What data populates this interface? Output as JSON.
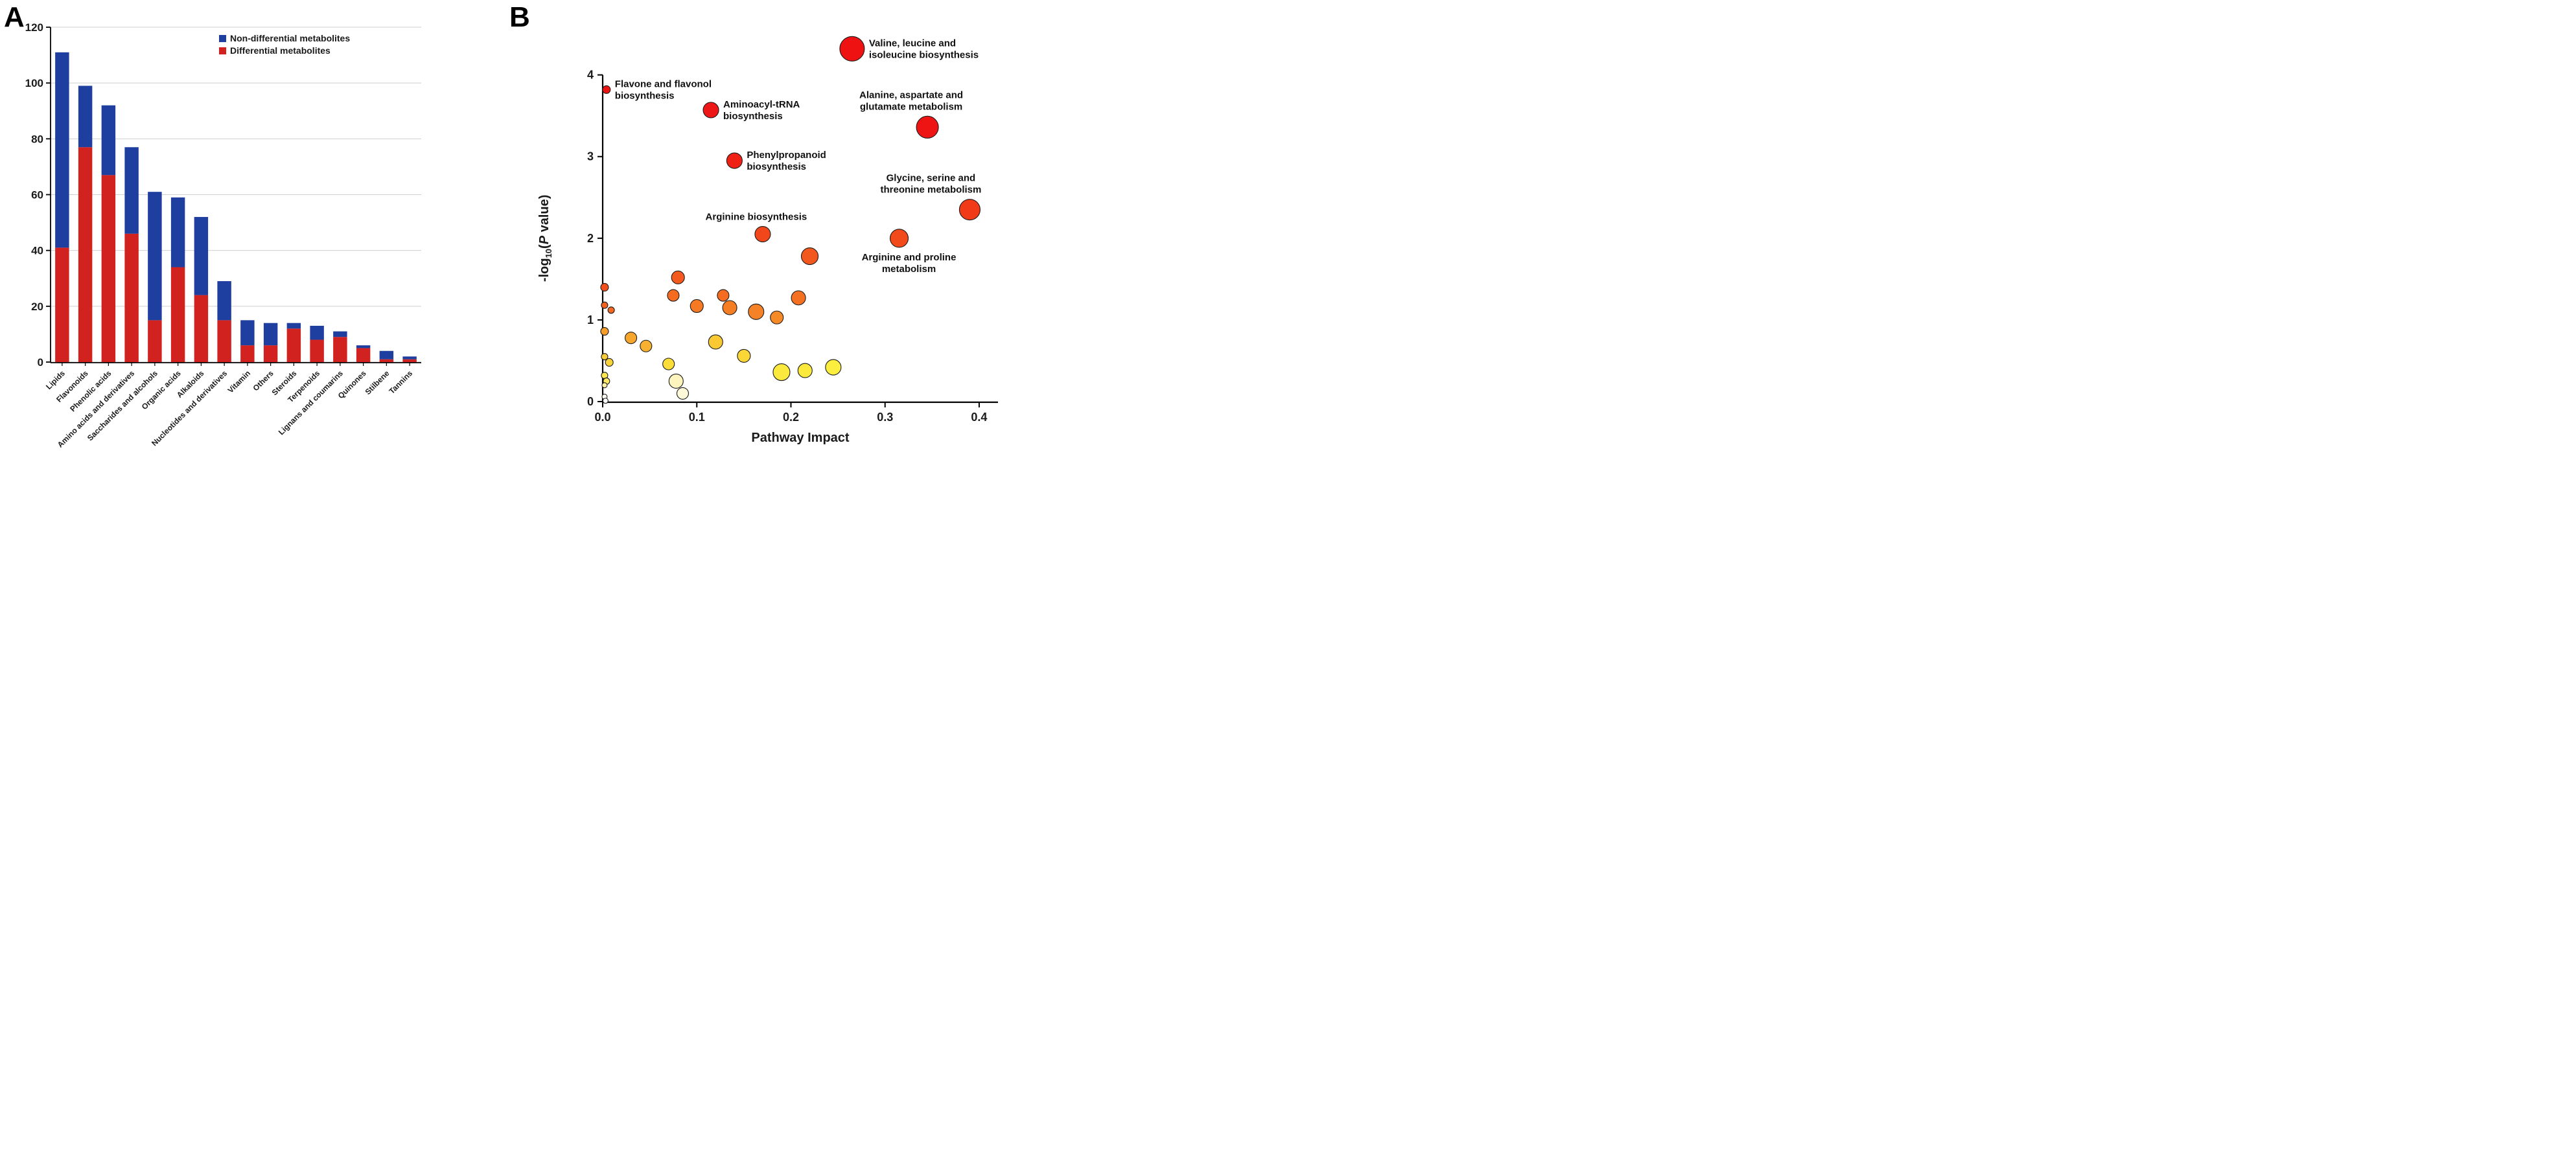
{
  "panels": {
    "a_label": "A",
    "b_label": "B"
  },
  "chart_data": [
    {
      "type": "bar",
      "stacked": true,
      "title": "",
      "categories": [
        "Lipids",
        "Flavonoids",
        "Phenolic acids",
        "Amino acids and derivatives",
        "Saccharides and alcohols",
        "Organic acids",
        "Alkaloids",
        "Nucleotides and derivatives",
        "Vitamin",
        "Others",
        "Steroids",
        "Terpenoids",
        "Lignans and coumarins",
        "Quinones",
        "Stilbene",
        "Tannins"
      ],
      "series": [
        {
          "name": "Differential metabolites",
          "color": "#d1221f",
          "values": [
            41,
            77,
            67,
            46,
            15,
            34,
            24,
            15,
            6,
            6,
            12,
            8,
            9,
            5,
            1,
            1
          ]
        },
        {
          "name": "Non-differential metabolites",
          "color": "#1e3ea0",
          "values": [
            70,
            22,
            25,
            31,
            46,
            25,
            28,
            14,
            9,
            8,
            2,
            5,
            2,
            1,
            3,
            1
          ]
        }
      ],
      "totals": [
        111,
        99,
        92,
        77,
        61,
        59,
        52,
        29,
        15,
        14,
        14,
        13,
        11,
        6,
        4,
        2
      ],
      "legend": {
        "position": "top-right",
        "items": [
          {
            "label": "Non-differential metabolites",
            "color": "#1e3ea0"
          },
          {
            "label": "Differential metabolites",
            "color": "#d1221f"
          }
        ]
      },
      "xlabel": "",
      "ylabel": "",
      "ylim": [
        0,
        120
      ],
      "yticks": [
        0,
        20,
        40,
        60,
        80,
        100,
        120
      ],
      "grid": true
    },
    {
      "type": "scatter",
      "title": "",
      "xlabel": "Pathway Impact",
      "ylabel": "-log10(P value)",
      "ylabel_parts": {
        "prefix": "-log",
        "sub": "10",
        "open": "(",
        "italic": "P",
        "suffix": " value)"
      },
      "xlim": [
        0,
        0.42
      ],
      "ylim": [
        0,
        4.6
      ],
      "xticks": [
        0.0,
        0.1,
        0.2,
        0.3,
        0.4
      ],
      "yticks": [
        0,
        1,
        2,
        3,
        4
      ],
      "grid": false,
      "points": [
        {
          "x": 0.004,
          "y": 3.82,
          "r": 6,
          "color": "#ec1313",
          "label": [
            "Flavone and flavonol",
            "biosynthesis"
          ],
          "anchor": "right"
        },
        {
          "x": 0.115,
          "y": 3.57,
          "r": 12,
          "color": "#ed1717",
          "label": [
            "Aminoacyl-tRNA",
            "biosynthesis"
          ],
          "anchor": "right"
        },
        {
          "x": 0.265,
          "y": 4.32,
          "r": 19,
          "color": "#ee1212",
          "label": [
            "Valine, leucine and",
            "isoleucine biosynthesis"
          ],
          "anchor": "right"
        },
        {
          "x": 0.345,
          "y": 3.36,
          "r": 17,
          "color": "#ee1414",
          "label": [
            "Alanine, aspartate and",
            "glutamate metabolism"
          ],
          "anchor": "above",
          "dx": -25
        },
        {
          "x": 0.14,
          "y": 2.95,
          "r": 12,
          "color": "#ef2114",
          "label": [
            "Phenylpropanoid",
            "biosynthesis"
          ],
          "anchor": "right"
        },
        {
          "x": 0.39,
          "y": 2.35,
          "r": 16,
          "color": "#f13a17",
          "label": [
            "Glycine, serine and",
            "threonine metabolism"
          ],
          "anchor": "above",
          "dx": -60
        },
        {
          "x": 0.17,
          "y": 2.05,
          "r": 12,
          "color": "#f2471a",
          "label": [
            "Arginine biosynthesis"
          ],
          "anchor": "above",
          "dx": -10
        },
        {
          "x": 0.315,
          "y": 2.0,
          "r": 14,
          "color": "#f24a1b",
          "label": [
            "Arginine and proline",
            "metabolism"
          ],
          "anchor": "below",
          "dx": 15
        },
        {
          "x": 0.22,
          "y": 1.78,
          "r": 13,
          "color": "#f2571e"
        },
        {
          "x": 0.002,
          "y": 1.4,
          "r": 6,
          "color": "#f24e1b"
        },
        {
          "x": 0.002,
          "y": 1.18,
          "r": 5,
          "color": "#f4611f"
        },
        {
          "x": 0.009,
          "y": 1.12,
          "r": 5,
          "color": "#f46821"
        },
        {
          "x": 0.08,
          "y": 1.52,
          "r": 10,
          "color": "#f45a1d"
        },
        {
          "x": 0.075,
          "y": 1.3,
          "r": 9,
          "color": "#f56b20"
        },
        {
          "x": 0.1,
          "y": 1.17,
          "r": 10,
          "color": "#f57a23"
        },
        {
          "x": 0.128,
          "y": 1.3,
          "r": 9,
          "color": "#f56b20"
        },
        {
          "x": 0.135,
          "y": 1.15,
          "r": 11,
          "color": "#f57d24"
        },
        {
          "x": 0.163,
          "y": 1.1,
          "r": 12,
          "color": "#f58226"
        },
        {
          "x": 0.185,
          "y": 1.03,
          "r": 10,
          "color": "#f58a27"
        },
        {
          "x": 0.208,
          "y": 1.27,
          "r": 11,
          "color": "#f47121"
        },
        {
          "x": 0.002,
          "y": 0.86,
          "r": 6,
          "color": "#f59c2b"
        },
        {
          "x": 0.03,
          "y": 0.78,
          "r": 9,
          "color": "#f6a62d"
        },
        {
          "x": 0.046,
          "y": 0.68,
          "r": 9,
          "color": "#f7b02f"
        },
        {
          "x": 0.12,
          "y": 0.73,
          "r": 11,
          "color": "#f9c934"
        },
        {
          "x": 0.15,
          "y": 0.56,
          "r": 10,
          "color": "#fad637"
        },
        {
          "x": 0.002,
          "y": 0.55,
          "r": 5,
          "color": "#f9cb36"
        },
        {
          "x": 0.007,
          "y": 0.48,
          "r": 6,
          "color": "#fad338"
        },
        {
          "x": 0.07,
          "y": 0.46,
          "r": 9,
          "color": "#fbdd3a"
        },
        {
          "x": 0.19,
          "y": 0.36,
          "r": 13,
          "color": "#fbe93d"
        },
        {
          "x": 0.215,
          "y": 0.38,
          "r": 11,
          "color": "#fbe93d"
        },
        {
          "x": 0.245,
          "y": 0.42,
          "r": 12,
          "color": "#fcee3f"
        },
        {
          "x": 0.002,
          "y": 0.32,
          "r": 5,
          "color": "#fce64e"
        },
        {
          "x": 0.004,
          "y": 0.25,
          "r": 5,
          "color": "#fcea66"
        },
        {
          "x": 0.002,
          "y": 0.2,
          "r": 4,
          "color": "#fdf2a8"
        },
        {
          "x": 0.078,
          "y": 0.25,
          "r": 11,
          "color": "#fdf5bd"
        },
        {
          "x": 0.085,
          "y": 0.1,
          "r": 9,
          "color": "#fef9d9"
        },
        {
          "x": 0.002,
          "y": 0.06,
          "r": 4,
          "color": "#fffdf2"
        },
        {
          "x": 0.003,
          "y": 0.01,
          "r": 4,
          "color": "#ffffff"
        }
      ]
    }
  ]
}
